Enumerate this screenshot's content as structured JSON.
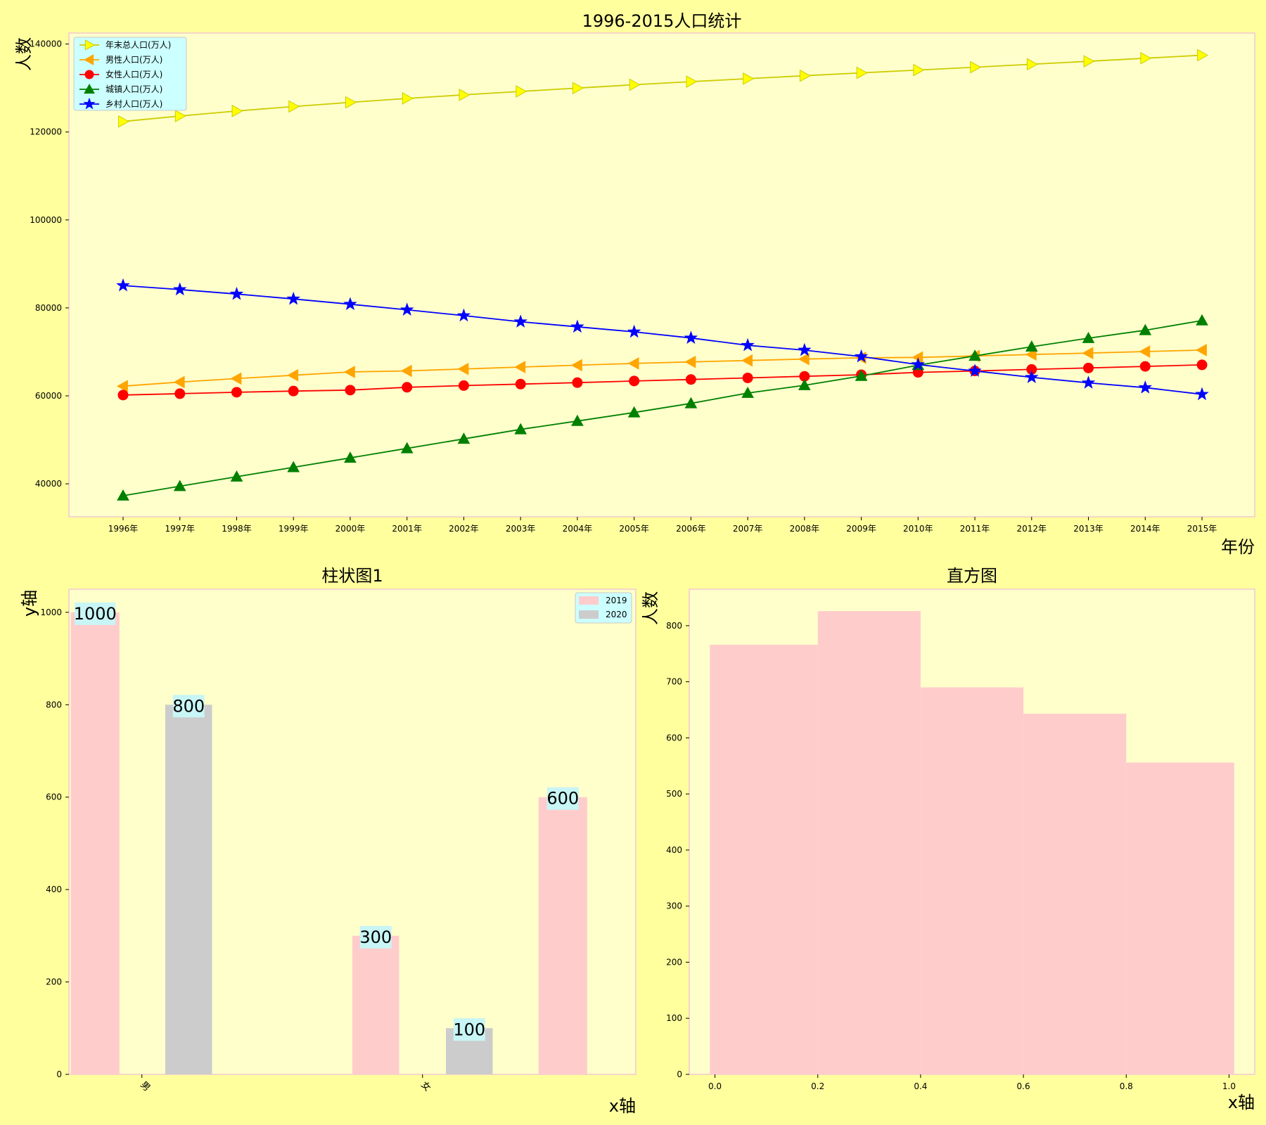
{
  "colors": {
    "figure_bg": "#ffff9e",
    "axes_bg": "#ffffcc",
    "axes_border": "#f2c9cf",
    "legend_bg": "#ccffff",
    "label_box": "#c8f5f5",
    "bar_2019": "#ffcccc",
    "bar_2020": "#cccccc",
    "hist": "#ffcccc"
  },
  "chart_data": [
    {
      "id": "line",
      "type": "line",
      "title": "1996-2015人口统计",
      "xlabel": "年份",
      "ylabel": "人数",
      "categories": [
        "1996年",
        "1997年",
        "1998年",
        "1999年",
        "2000年",
        "2001年",
        "2002年",
        "2003年",
        "2004年",
        "2005年",
        "2006年",
        "2007年",
        "2008年",
        "2009年",
        "2010年",
        "2011年",
        "2012年",
        "2013年",
        "2014年",
        "2015年"
      ],
      "yticks": [
        40000,
        60000,
        80000,
        100000,
        120000,
        140000
      ],
      "ylim": [
        32500,
        142500
      ],
      "legend_position": "upper-left",
      "series": [
        {
          "name": "年末总人口(万人)",
          "color": "#cccc00",
          "marker_fill": "#ffff00",
          "marker": "triangle-right",
          "values": [
            122389,
            123626,
            124761,
            125786,
            126743,
            127627,
            128453,
            129227,
            129988,
            130756,
            131448,
            132129,
            132802,
            133450,
            134091,
            134735,
            135404,
            136072,
            136782,
            137462
          ]
        },
        {
          "name": "男性人口(万人)",
          "color": "#ffa500",
          "marker_fill": "#ffa500",
          "marker": "triangle-left",
          "values": [
            62200,
            63131,
            63940,
            64692,
            65437,
            65672,
            66115,
            66556,
            66976,
            67375,
            67728,
            68048,
            68357,
            68647,
            68748,
            69068,
            69395,
            69728,
            70079,
            70414
          ]
        },
        {
          "name": "女性人口(万人)",
          "color": "#ff0000",
          "marker_fill": "#ff0000",
          "marker": "circle",
          "values": [
            60189,
            60495,
            60821,
            61094,
            61306,
            61955,
            62338,
            62671,
            63012,
            63381,
            63720,
            64081,
            64445,
            64803,
            65343,
            65667,
            66009,
            66344,
            66703,
            67048
          ]
        },
        {
          "name": "城镇人口(万人)",
          "color": "#008000",
          "marker_fill": "#008000",
          "marker": "triangle-up",
          "values": [
            37304,
            39449,
            41608,
            43748,
            45906,
            48064,
            50212,
            52376,
            54283,
            56212,
            58288,
            60633,
            62403,
            64512,
            66978,
            69079,
            71182,
            73111,
            74916,
            77116
          ]
        },
        {
          "name": "乡村人口(万人)",
          "color": "#0000ff",
          "marker_fill": "#0000ff",
          "marker": "star",
          "values": [
            85085,
            84177,
            83153,
            82038,
            80837,
            79563,
            78241,
            76851,
            75705,
            74544,
            73160,
            71496,
            70399,
            68938,
            67113,
            65656,
            64222,
            62961,
            61866,
            60346
          ]
        }
      ]
    },
    {
      "id": "bar",
      "type": "bar",
      "title": "柱状图1",
      "xlabel": "x轴",
      "ylabel": "y轴",
      "ylim": [
        0,
        1050
      ],
      "yticks": [
        0,
        200,
        400,
        600,
        800,
        1000
      ],
      "xticks": [
        {
          "x": 0.5,
          "label": "男"
        },
        {
          "x": 3.5,
          "label": "女"
        }
      ],
      "xlim": [
        -0.28,
        5.78
      ],
      "legend": [
        {
          "name": "2019",
          "color": "#ffcccc"
        },
        {
          "name": "2020",
          "color": "#cccccc"
        }
      ],
      "legend_position": "upper-right",
      "bars": [
        {
          "x": 0,
          "width": 0.52,
          "value": 1000,
          "label": "1000",
          "series": "2019"
        },
        {
          "x": 1,
          "width": 0.5,
          "value": 800,
          "label": "800",
          "series": "2020"
        },
        {
          "x": 3,
          "width": 0.5,
          "value": 300,
          "label": "300",
          "series": "2019"
        },
        {
          "x": 4,
          "width": 0.5,
          "value": 100,
          "label": "100",
          "series": "2020"
        },
        {
          "x": 5,
          "width": 0.52,
          "value": 600,
          "label": "600",
          "series": "2019"
        }
      ]
    },
    {
      "id": "hist",
      "type": "bar",
      "title": "直方图",
      "xlabel": "x轴",
      "ylabel": "人数",
      "xlim": [
        -0.05,
        1.05
      ],
      "ylim": [
        0,
        865
      ],
      "xticks": [
        0.0,
        0.2,
        0.4,
        0.6,
        0.8,
        1.0
      ],
      "xtick_labels": [
        "0.0",
        "0.2",
        "0.4",
        "0.6",
        "0.8",
        "1.0"
      ],
      "yticks": [
        0,
        100,
        200,
        300,
        400,
        500,
        600,
        700,
        800
      ],
      "bins": [
        {
          "start": -0.01,
          "end": 0.2,
          "value": 766
        },
        {
          "start": 0.2,
          "end": 0.4,
          "value": 826
        },
        {
          "start": 0.4,
          "end": 0.6,
          "value": 690
        },
        {
          "start": 0.6,
          "end": 0.8,
          "value": 643
        },
        {
          "start": 0.8,
          "end": 1.01,
          "value": 556
        }
      ]
    }
  ]
}
